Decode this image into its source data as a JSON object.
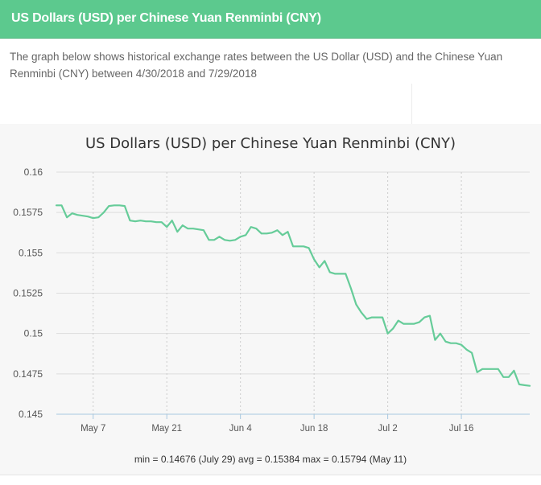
{
  "header": {
    "title": "US Dollars (USD) per Chinese Yuan Renminbi (CNY)"
  },
  "description": "The graph below shows historical exchange rates between the US Dollar (USD) and the Chinese Yuan Renminbi (CNY) between 4/30/2018 and 7/29/2018",
  "colors": {
    "header": "#5cc98e",
    "line": "#66cc99",
    "gridline": "#dddddd",
    "axis": "#a8c8e0"
  },
  "chart_data": {
    "type": "line",
    "title": "US Dollars (USD) per Chinese Yuan Renminbi (CNY)",
    "xlabel": "",
    "ylabel": "",
    "x_range": [
      "2018-04-30",
      "2018-07-29"
    ],
    "ylim": [
      0.145,
      0.16
    ],
    "y_ticks": [
      "0.16",
      "0.1575",
      "0.155",
      "0.1525",
      "0.15",
      "0.1475",
      "0.145"
    ],
    "y_tick_values": [
      0.16,
      0.1575,
      0.155,
      0.1525,
      0.15,
      0.1475,
      0.145
    ],
    "x_ticks": [
      {
        "date": "2018-05-07",
        "label": "May 7"
      },
      {
        "date": "2018-05-21",
        "label": "May 21"
      },
      {
        "date": "2018-06-04",
        "label": "Jun 4"
      },
      {
        "date": "2018-06-18",
        "label": "Jun 18"
      },
      {
        "date": "2018-07-02",
        "label": "Jul 2"
      },
      {
        "date": "2018-07-16",
        "label": "Jul 16"
      }
    ],
    "grid": "vertical-dotted-horizontal-solid",
    "series": [
      {
        "points": [
          [
            "2018-04-30",
            0.15794
          ],
          [
            "2018-05-01",
            0.15794
          ],
          [
            "2018-05-02",
            0.1572
          ],
          [
            "2018-05-03",
            0.15745
          ],
          [
            "2018-05-04",
            0.15735
          ],
          [
            "2018-05-05",
            0.1573
          ],
          [
            "2018-05-06",
            0.15725
          ],
          [
            "2018-05-07",
            0.15715
          ],
          [
            "2018-05-08",
            0.1572
          ],
          [
            "2018-05-09",
            0.1575
          ],
          [
            "2018-05-10",
            0.1579
          ],
          [
            "2018-05-11",
            0.15794
          ],
          [
            "2018-05-12",
            0.15794
          ],
          [
            "2018-05-13",
            0.1579
          ],
          [
            "2018-05-14",
            0.157
          ],
          [
            "2018-05-15",
            0.15695
          ],
          [
            "2018-05-16",
            0.157
          ],
          [
            "2018-05-17",
            0.15695
          ],
          [
            "2018-05-18",
            0.15695
          ],
          [
            "2018-05-19",
            0.1569
          ],
          [
            "2018-05-20",
            0.1569
          ],
          [
            "2018-05-21",
            0.1566
          ],
          [
            "2018-05-22",
            0.157
          ],
          [
            "2018-05-23",
            0.1563
          ],
          [
            "2018-05-24",
            0.1567
          ],
          [
            "2018-05-25",
            0.1565
          ],
          [
            "2018-05-26",
            0.1565
          ],
          [
            "2018-05-27",
            0.15645
          ],
          [
            "2018-05-28",
            0.1564
          ],
          [
            "2018-05-29",
            0.1558
          ],
          [
            "2018-05-30",
            0.1558
          ],
          [
            "2018-05-31",
            0.156
          ],
          [
            "2018-06-01",
            0.1558
          ],
          [
            "2018-06-02",
            0.15575
          ],
          [
            "2018-06-03",
            0.1558
          ],
          [
            "2018-06-04",
            0.156
          ],
          [
            "2018-06-05",
            0.1561
          ],
          [
            "2018-06-06",
            0.1566
          ],
          [
            "2018-06-07",
            0.1565
          ],
          [
            "2018-06-08",
            0.1562
          ],
          [
            "2018-06-09",
            0.1562
          ],
          [
            "2018-06-10",
            0.15625
          ],
          [
            "2018-06-11",
            0.1564
          ],
          [
            "2018-06-12",
            0.1561
          ],
          [
            "2018-06-13",
            0.1563
          ],
          [
            "2018-06-14",
            0.1554
          ],
          [
            "2018-06-15",
            0.1554
          ],
          [
            "2018-06-16",
            0.1554
          ],
          [
            "2018-06-17",
            0.1553
          ],
          [
            "2018-06-18",
            0.1546
          ],
          [
            "2018-06-19",
            0.1541
          ],
          [
            "2018-06-20",
            0.1545
          ],
          [
            "2018-06-21",
            0.1538
          ],
          [
            "2018-06-22",
            0.1537
          ],
          [
            "2018-06-23",
            0.1537
          ],
          [
            "2018-06-24",
            0.1537
          ],
          [
            "2018-06-25",
            0.1528
          ],
          [
            "2018-06-26",
            0.1518
          ],
          [
            "2018-06-27",
            0.1513
          ],
          [
            "2018-06-28",
            0.1509
          ],
          [
            "2018-06-29",
            0.151
          ],
          [
            "2018-06-30",
            0.151
          ],
          [
            "2018-07-01",
            0.151
          ],
          [
            "2018-07-02",
            0.15
          ],
          [
            "2018-07-03",
            0.1503
          ],
          [
            "2018-07-04",
            0.1508
          ],
          [
            "2018-07-05",
            0.1506
          ],
          [
            "2018-07-06",
            0.1506
          ],
          [
            "2018-07-07",
            0.1506
          ],
          [
            "2018-07-08",
            0.1507
          ],
          [
            "2018-07-09",
            0.151
          ],
          [
            "2018-07-10",
            0.1511
          ],
          [
            "2018-07-11",
            0.1496
          ],
          [
            "2018-07-12",
            0.15
          ],
          [
            "2018-07-13",
            0.1495
          ],
          [
            "2018-07-14",
            0.1494
          ],
          [
            "2018-07-15",
            0.1494
          ],
          [
            "2018-07-16",
            0.1493
          ],
          [
            "2018-07-17",
            0.149
          ],
          [
            "2018-07-18",
            0.1488
          ],
          [
            "2018-07-19",
            0.1476
          ],
          [
            "2018-07-20",
            0.1478
          ],
          [
            "2018-07-21",
            0.1478
          ],
          [
            "2018-07-22",
            0.1478
          ],
          [
            "2018-07-23",
            0.1478
          ],
          [
            "2018-07-24",
            0.1473
          ],
          [
            "2018-07-25",
            0.1473
          ],
          [
            "2018-07-26",
            0.1477
          ],
          [
            "2018-07-27",
            0.14685
          ],
          [
            "2018-07-28",
            0.1468
          ],
          [
            "2018-07-29",
            0.14676
          ]
        ]
      }
    ],
    "summary": "min = 0.14676 (July 29) avg = 0.15384 max = 0.15794 (May 11)"
  }
}
